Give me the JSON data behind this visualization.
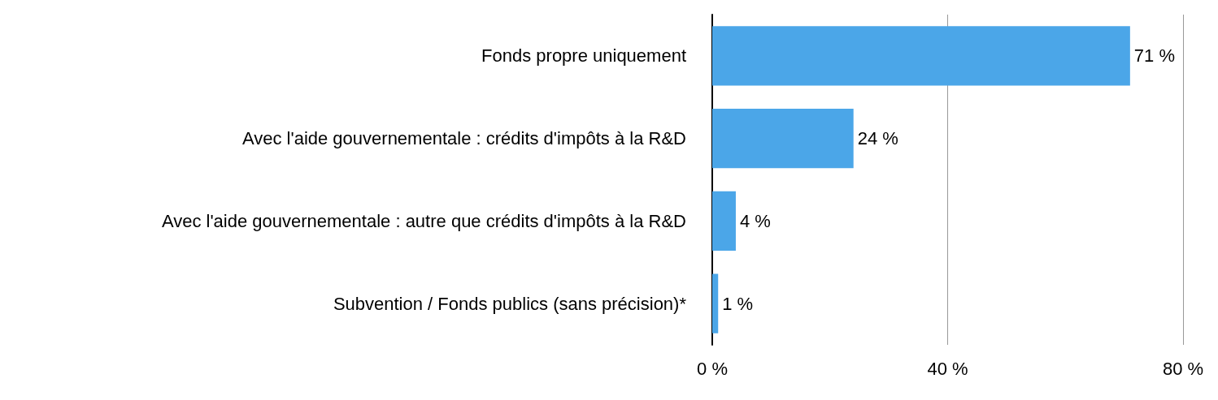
{
  "chart_data": {
    "type": "bar",
    "orientation": "horizontal",
    "categories": [
      "Fonds propre uniquement",
      "Avec l'aide gouvernementale : crédits d'impôts à la R&D",
      "Avec l'aide gouvernementale : autre que crédits d'impôts à la R&D",
      "Subvention / Fonds publics (sans précision)*"
    ],
    "values": [
      71,
      24,
      4,
      1
    ],
    "value_labels": [
      "71 %",
      "24 %",
      "4 %",
      "1 %"
    ],
    "color": "#4ba6e8",
    "xlim": [
      0,
      80
    ],
    "xticks": [
      {
        "value": 0,
        "label": "0 %"
      },
      {
        "value": 40,
        "label": "40 %"
      },
      {
        "value": 80,
        "label": "80 %"
      }
    ],
    "grid": "x"
  }
}
